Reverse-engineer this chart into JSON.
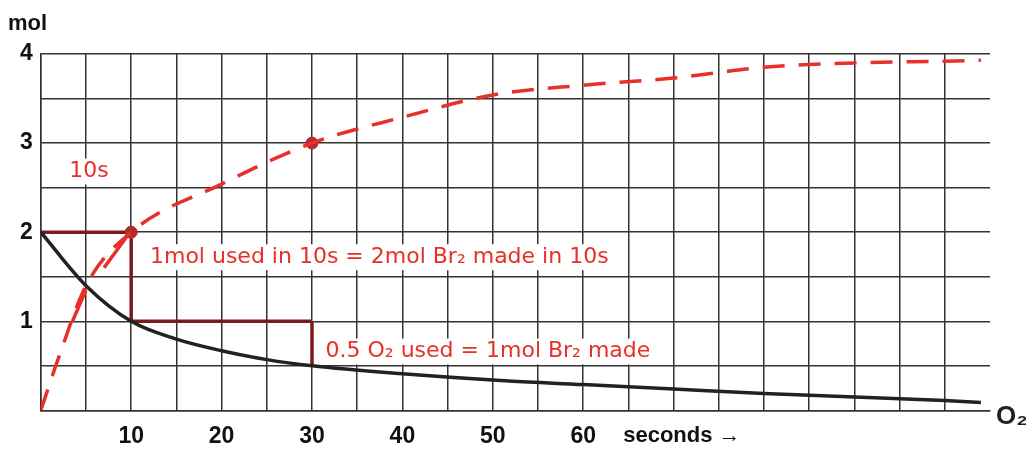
{
  "chart_data": {
    "type": "line",
    "ylabel": "mol",
    "xlabel": "seconds →",
    "xlim": [
      0,
      105
    ],
    "ylim": [
      0,
      4
    ],
    "xticks": [
      {
        "value": 0,
        "label": null
      },
      {
        "value": 5,
        "label": null
      },
      10,
      {
        "value": 15,
        "label": null
      },
      20,
      {
        "value": 25,
        "label": null
      },
      30,
      {
        "value": 35,
        "label": null
      },
      40,
      {
        "value": 45,
        "label": null
      },
      50,
      {
        "value": 55,
        "label": null
      },
      60,
      {
        "value": 65,
        "label": null
      },
      {
        "value": 70,
        "label": null
      },
      {
        "value": 75,
        "label": null
      },
      {
        "value": 80,
        "label": null
      },
      {
        "value": 85,
        "label": null
      },
      {
        "value": 90,
        "label": null
      },
      {
        "value": 95,
        "label": null
      },
      {
        "value": 100,
        "label": null
      }
    ],
    "yticks": [
      {
        "value": 0,
        "label": null
      },
      {
        "value": 0.5,
        "label": null
      },
      1,
      {
        "value": 1.5,
        "label": null
      },
      2,
      {
        "value": 2.5,
        "label": null
      },
      3,
      {
        "value": 3.5,
        "label": null
      },
      4
    ],
    "grid": true,
    "marker": "none",
    "legend": false,
    "series": [
      {
        "name": "O₂",
        "color": "#222222",
        "x": [
          0,
          5,
          10,
          15,
          20,
          25,
          30,
          40,
          50,
          60,
          70,
          80,
          90,
          100,
          104
        ],
        "values": [
          2,
          1.4,
          1,
          0.8,
          0.67,
          0.57,
          0.5,
          0.41,
          0.34,
          0.29,
          0.24,
          0.19,
          0.15,
          0.11,
          0.09
        ]
      },
      {
        "color": "#e8302a",
        "line_style": "dashed",
        "x": [
          0,
          2,
          5,
          10,
          20,
          30,
          40,
          50,
          60,
          70,
          80,
          90,
          100,
          104
        ],
        "values": [
          0,
          0.6,
          1.4,
          2,
          2.54,
          3,
          3.29,
          3.54,
          3.65,
          3.73,
          3.85,
          3.9,
          3.92,
          3.93
        ]
      },
      {
        "type": "scatter",
        "marker": "circle",
        "color": "#b52a2a",
        "x": [
          10,
          30
        ],
        "values": [
          2,
          3
        ]
      },
      {
        "color": "#7a1c1c",
        "x": [
          0,
          10
        ],
        "values": [
          2,
          2
        ]
      },
      {
        "color": "#7a1c1c",
        "x": [
          10,
          10
        ],
        "values": [
          2,
          1
        ]
      },
      {
        "color": "#7a1c1c",
        "x": [
          10,
          30
        ],
        "values": [
          1,
          1
        ]
      },
      {
        "color": "#7a1c1c",
        "x": [
          30,
          30
        ],
        "values": [
          1,
          0.5
        ]
      },
      {
        "color": "#e8302a",
        "x": [
          3.5,
          5
        ],
        "values": [
          1,
          1.35
        ]
      },
      {
        "color": "#e8302a",
        "x": [
          7,
          9.5
        ],
        "values": [
          1.6,
          1.95
        ]
      }
    ],
    "annotations": [
      "10s",
      "1mol used in 10s = 2mol Br₂ made in 10s",
      "0.5 O₂ used = 1mol Br₂ made"
    ]
  }
}
